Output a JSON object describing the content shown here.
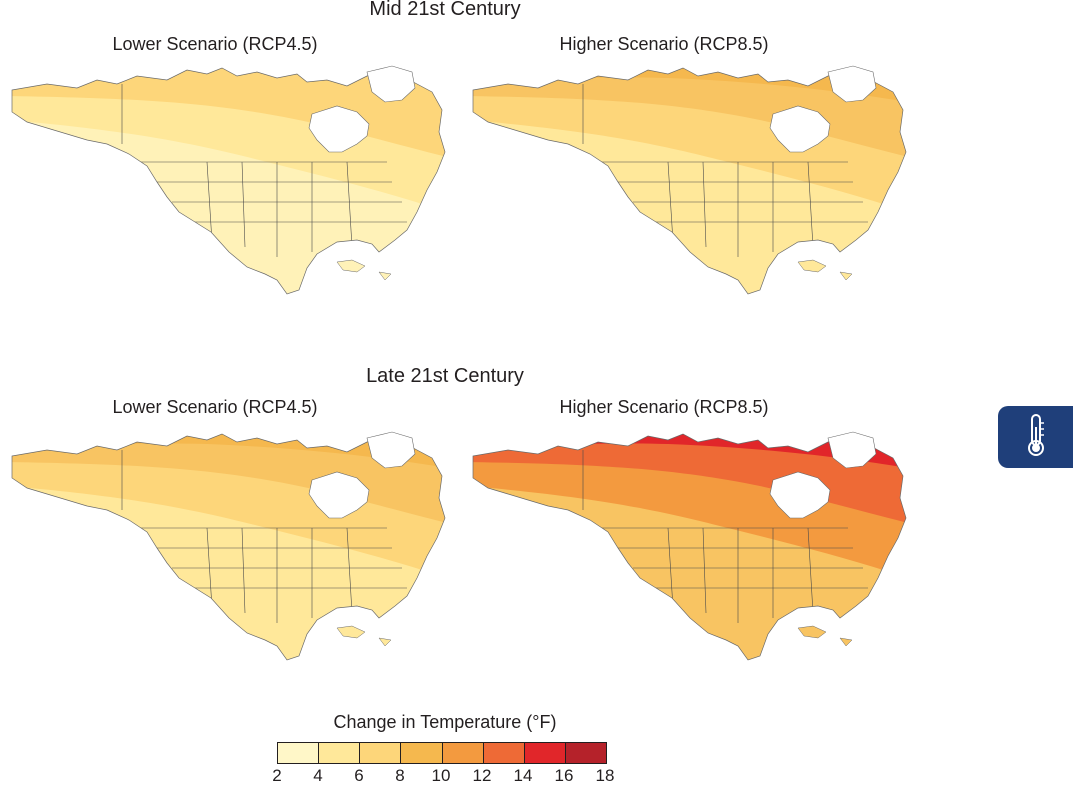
{
  "sections": {
    "mid": {
      "title": "Mid 21st Century",
      "lower": "Lower Scenario (RCP4.5)",
      "higher": "Higher Scenario (RCP8.5)"
    },
    "late": {
      "title": "Late 21st Century",
      "lower": "Lower Scenario (RCP4.5)",
      "higher": "Higher Scenario (RCP8.5)"
    }
  },
  "legend": {
    "title": "Change in Temperature (°F)",
    "ticks": [
      "2",
      "4",
      "6",
      "8",
      "10",
      "12",
      "14",
      "16",
      "18"
    ],
    "colors": [
      "#fff7c8",
      "#ffe89a",
      "#fdd67a",
      "#f5b84e",
      "#f39a3f",
      "#ee6a36",
      "#e1262a",
      "#b5222a"
    ]
  },
  "maps": {
    "mid_lower": [
      "#fff2b8",
      "#ffe89a",
      "#fdd67a",
      "#fdd67a"
    ],
    "mid_higher": [
      "#ffe89a",
      "#fdd67a",
      "#f8c462",
      "#f5b84e"
    ],
    "late_lower": [
      "#ffe89a",
      "#fdd67a",
      "#f8c462",
      "#f5b84e"
    ],
    "late_higher": [
      "#f8c462",
      "#f39a3f",
      "#ee6a36",
      "#e1262a"
    ]
  },
  "badge": {
    "icon": "thermometer-icon",
    "color": "#1f3f7a"
  }
}
